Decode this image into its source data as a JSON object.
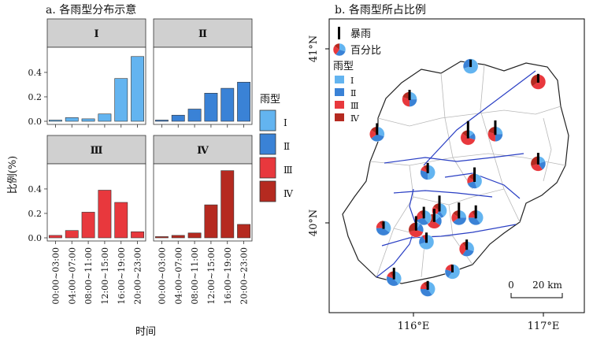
{
  "figure": {
    "panel_a_title": "a. 各雨型分布示意",
    "panel_b_title": "b. 各雨型所占比例"
  },
  "colors": {
    "I": "#63b4f0",
    "II": "#3a82d6",
    "III": "#e8383d",
    "IV": "#b52a20",
    "strip_bg": "#d0d0d0",
    "boundary": "#2a3fc4",
    "district": "#b8b8b8"
  },
  "chart_data": [
    {
      "type": "bar",
      "panel": "a",
      "facet": "雨型",
      "categories": [
        "00:00~03:00",
        "04:00~07:00",
        "08:00~11:00",
        "12:00~15:00",
        "16:00~19:00",
        "20:00~23:00"
      ],
      "series": [
        {
          "name": "Ⅰ",
          "values": [
            0.01,
            0.03,
            0.02,
            0.06,
            0.35,
            0.53
          ]
        },
        {
          "name": "Ⅱ",
          "values": [
            0.01,
            0.05,
            0.1,
            0.23,
            0.27,
            0.32
          ]
        },
        {
          "name": "Ⅲ",
          "values": [
            0.02,
            0.06,
            0.21,
            0.39,
            0.29,
            0.05
          ]
        },
        {
          "name": "Ⅳ",
          "values": [
            0.01,
            0.02,
            0.04,
            0.27,
            0.55,
            0.11
          ]
        }
      ],
      "ylim": [
        0,
        0.58
      ],
      "yticks": [
        "0.0",
        "0.2",
        "0.4"
      ],
      "xlabel": "时间",
      "ylabel": "比例(%)",
      "legend": {
        "title": "雨型",
        "position": "right",
        "labels": [
          "Ⅰ",
          "Ⅱ",
          "Ⅲ",
          "Ⅳ"
        ]
      }
    },
    {
      "type": "pie",
      "panel": "b",
      "map_axes": {
        "lat_labels": [
          "41°N",
          "40°N"
        ],
        "lon_labels": [
          "116°E",
          "117°E"
        ]
      },
      "scalebar": {
        "zero": "0",
        "label": "20 km"
      },
      "legend": {
        "rainstorm_label": "暴雨",
        "percent_label": "百分比",
        "type_title": "雨型",
        "type_labels": [
          "Ⅰ",
          "Ⅱ",
          "Ⅲ",
          "Ⅳ"
        ]
      },
      "stations": [
        {
          "lon": 116.44,
          "lat": 40.9,
          "share": [
            0.7,
            0.3,
            0.0,
            0.0
          ],
          "storm": 0.3
        },
        {
          "lon": 116.96,
          "lat": 40.81,
          "share": [
            0.0,
            0.0,
            0.65,
            0.35
          ],
          "storm": 0.4
        },
        {
          "lon": 115.97,
          "lat": 40.71,
          "share": [
            0.25,
            0.25,
            0.3,
            0.2
          ],
          "storm": 0.5
        },
        {
          "lon": 115.72,
          "lat": 40.51,
          "share": [
            0.3,
            0.35,
            0.2,
            0.15
          ],
          "storm": 0.6
        },
        {
          "lon": 116.42,
          "lat": 40.49,
          "share": [
            0.15,
            0.15,
            0.55,
            0.15
          ],
          "storm": 1.0
        },
        {
          "lon": 116.63,
          "lat": 40.51,
          "share": [
            0.25,
            0.25,
            0.3,
            0.2
          ],
          "storm": 0.8
        },
        {
          "lon": 116.96,
          "lat": 40.34,
          "share": [
            0.2,
            0.2,
            0.3,
            0.3
          ],
          "storm": 0.6
        },
        {
          "lon": 116.11,
          "lat": 40.29,
          "share": [
            0.5,
            0.3,
            0.1,
            0.1
          ],
          "storm": 0.5
        },
        {
          "lon": 116.47,
          "lat": 40.24,
          "share": [
            0.45,
            0.25,
            0.15,
            0.15
          ],
          "storm": 0.8
        },
        {
          "lon": 116.2,
          "lat": 40.07,
          "share": [
            0.4,
            0.2,
            0.25,
            0.15
          ],
          "storm": 0.9
        },
        {
          "lon": 116.16,
          "lat": 40.01,
          "share": [
            0.15,
            0.2,
            0.35,
            0.3
          ],
          "storm": 0.7
        },
        {
          "lon": 116.08,
          "lat": 40.03,
          "share": [
            0.4,
            0.3,
            0.2,
            0.1
          ],
          "storm": 0.6
        },
        {
          "lon": 116.35,
          "lat": 40.03,
          "share": [
            0.25,
            0.4,
            0.2,
            0.15
          ],
          "storm": 0.9
        },
        {
          "lon": 116.48,
          "lat": 40.03,
          "share": [
            0.4,
            0.35,
            0.15,
            0.1
          ],
          "storm": 0.7
        },
        {
          "lon": 116.02,
          "lat": 39.96,
          "share": [
            0.1,
            0.2,
            0.4,
            0.3
          ],
          "storm": 0.8
        },
        {
          "lon": 115.77,
          "lat": 39.97,
          "share": [
            0.35,
            0.4,
            0.15,
            0.1
          ],
          "storm": 0.3
        },
        {
          "lon": 116.1,
          "lat": 39.89,
          "share": [
            0.7,
            0.2,
            0.1,
            0.0
          ],
          "storm": 0.5
        },
        {
          "lon": 116.41,
          "lat": 39.85,
          "share": [
            0.3,
            0.3,
            0.3,
            0.1
          ],
          "storm": 0.5
        },
        {
          "lon": 115.85,
          "lat": 39.68,
          "share": [
            0.4,
            0.4,
            0.1,
            0.1
          ],
          "storm": 0.6
        },
        {
          "lon": 116.11,
          "lat": 39.62,
          "share": [
            0.4,
            0.35,
            0.15,
            0.1
          ],
          "storm": 0.4
        },
        {
          "lon": 116.3,
          "lat": 39.72,
          "share": [
            0.6,
            0.2,
            0.15,
            0.05
          ],
          "storm": 0.3
        }
      ]
    }
  ]
}
